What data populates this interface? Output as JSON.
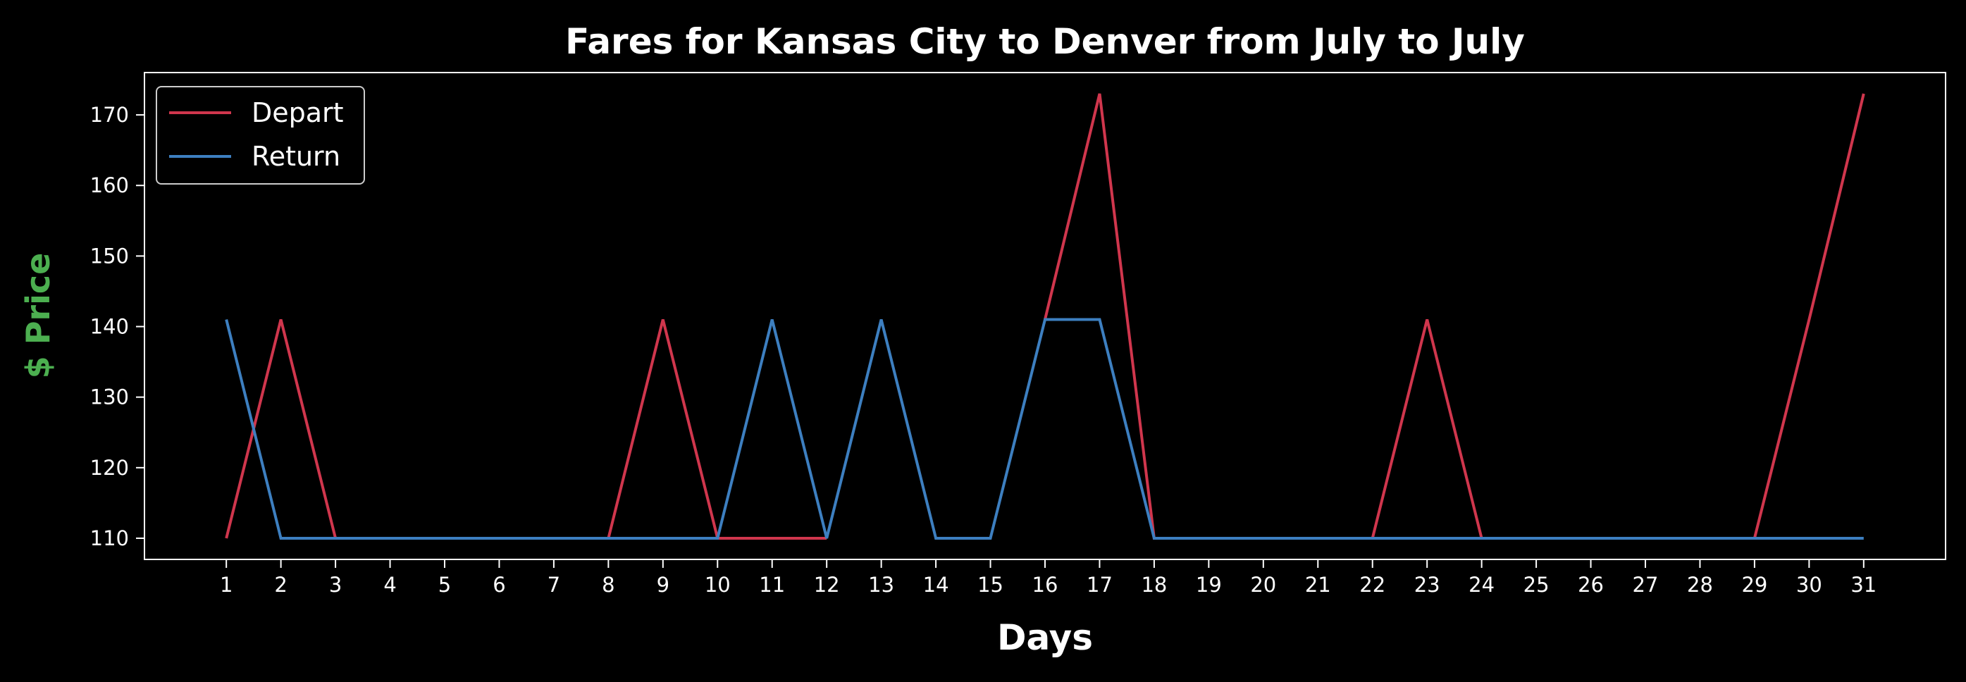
{
  "chart_data": {
    "type": "line",
    "title": "Fares for Kansas City to Denver from July to July",
    "xlabel": "Days",
    "ylabel": "$ Price",
    "ylabel_color": "#4caf50",
    "x": [
      1,
      2,
      3,
      4,
      5,
      6,
      7,
      8,
      9,
      10,
      11,
      12,
      13,
      14,
      15,
      16,
      17,
      18,
      19,
      20,
      21,
      22,
      23,
      24,
      25,
      26,
      27,
      28,
      29,
      30,
      31
    ],
    "xticks": [
      "1",
      "2",
      "3",
      "4",
      "5",
      "6",
      "7",
      "8",
      "9",
      "10",
      "11",
      "12",
      "13",
      "14",
      "15",
      "16",
      "17",
      "18",
      "19",
      "20",
      "21",
      "22",
      "23",
      "24",
      "25",
      "26",
      "27",
      "28",
      "29",
      "30",
      "31"
    ],
    "yticks": [
      "110",
      "120",
      "130",
      "140",
      "150",
      "160",
      "170"
    ],
    "xlim": [
      -0.5,
      32.5
    ],
    "ylim": [
      107,
      176
    ],
    "grid": false,
    "legend": "upper-left",
    "background": "#000000",
    "series": [
      {
        "name": "Depart",
        "color": "#d0364d",
        "values": [
          110,
          141,
          110,
          110,
          110,
          110,
          110,
          110,
          141,
          110,
          110,
          110,
          null,
          null,
          null,
          141,
          173,
          110,
          110,
          110,
          110,
          110,
          141,
          110,
          110,
          110,
          110,
          110,
          110,
          141,
          173
        ]
      },
      {
        "name": "Return",
        "color": "#3d7fc0",
        "values": [
          141,
          110,
          110,
          110,
          110,
          110,
          110,
          110,
          110,
          110,
          141,
          110,
          141,
          110,
          110,
          141,
          141,
          110,
          110,
          110,
          110,
          110,
          110,
          110,
          110,
          110,
          110,
          110,
          110,
          110,
          110
        ]
      }
    ]
  }
}
